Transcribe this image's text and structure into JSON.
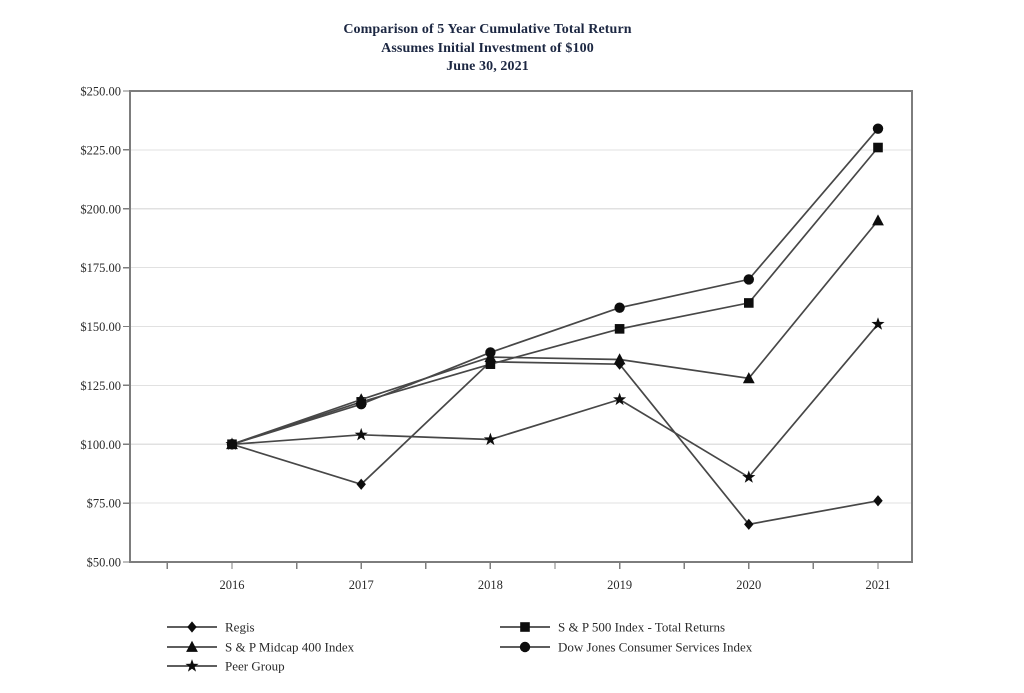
{
  "title": {
    "line1": "Comparison of 5 Year Cumulative Total Return",
    "line2": "Assumes Initial Investment of $100",
    "line3": "June 30, 2021"
  },
  "chart_data": {
    "type": "line",
    "title": "Comparison of 5 Year Cumulative Total Return",
    "subtitle": "Assumes Initial Investment of $100",
    "as_of_date": "June 30, 2021",
    "xlabel": "",
    "ylabel": "",
    "categories": [
      "2016",
      "2017",
      "2018",
      "2019",
      "2020",
      "2021"
    ],
    "ylim": [
      50,
      250
    ],
    "y_ticks": [
      {
        "value": 250,
        "label": "$250.00"
      },
      {
        "value": 225,
        "label": "$225.00"
      },
      {
        "value": 200,
        "label": "$200.00"
      },
      {
        "value": 175,
        "label": "$175.00"
      },
      {
        "value": 150,
        "label": "$150.00"
      },
      {
        "value": 125,
        "label": "$125.00"
      },
      {
        "value": 100,
        "label": "$100.00"
      },
      {
        "value": 75,
        "label": "$75.00"
      },
      {
        "value": 50,
        "label": "$50.00"
      }
    ],
    "grid": "horizontal",
    "legend_position": "bottom",
    "series": [
      {
        "name": "Regis",
        "marker": "diamond",
        "values": [
          100,
          83,
          135,
          134,
          66,
          76
        ]
      },
      {
        "name": "S & P 500 Index - Total Returns",
        "marker": "square",
        "values": [
          100,
          118,
          134,
          149,
          160,
          226
        ]
      },
      {
        "name": "S & P Midcap 400 Index",
        "marker": "triangle",
        "values": [
          100,
          119,
          137,
          136,
          128,
          195
        ]
      },
      {
        "name": "Dow Jones Consumer Services Index",
        "marker": "circle",
        "values": [
          100,
          117,
          139,
          158,
          170,
          234
        ]
      },
      {
        "name": "Peer Group",
        "marker": "star",
        "values": [
          100,
          104,
          102,
          119,
          86,
          151
        ]
      }
    ],
    "legend_columns": [
      [
        "Regis",
        "S & P Midcap 400 Index",
        "Peer Group"
      ],
      [
        "S & P 500 Index - Total Returns",
        "Dow Jones Consumer Services Index"
      ]
    ],
    "colors": {
      "line": "#474747",
      "marker": "#0d0d0d",
      "grid": "#e1e1e1",
      "axis_border": "#7d7d7d",
      "text": "#2a2a2a",
      "title_text": "#1c2742",
      "background": "#ffffff"
    }
  }
}
